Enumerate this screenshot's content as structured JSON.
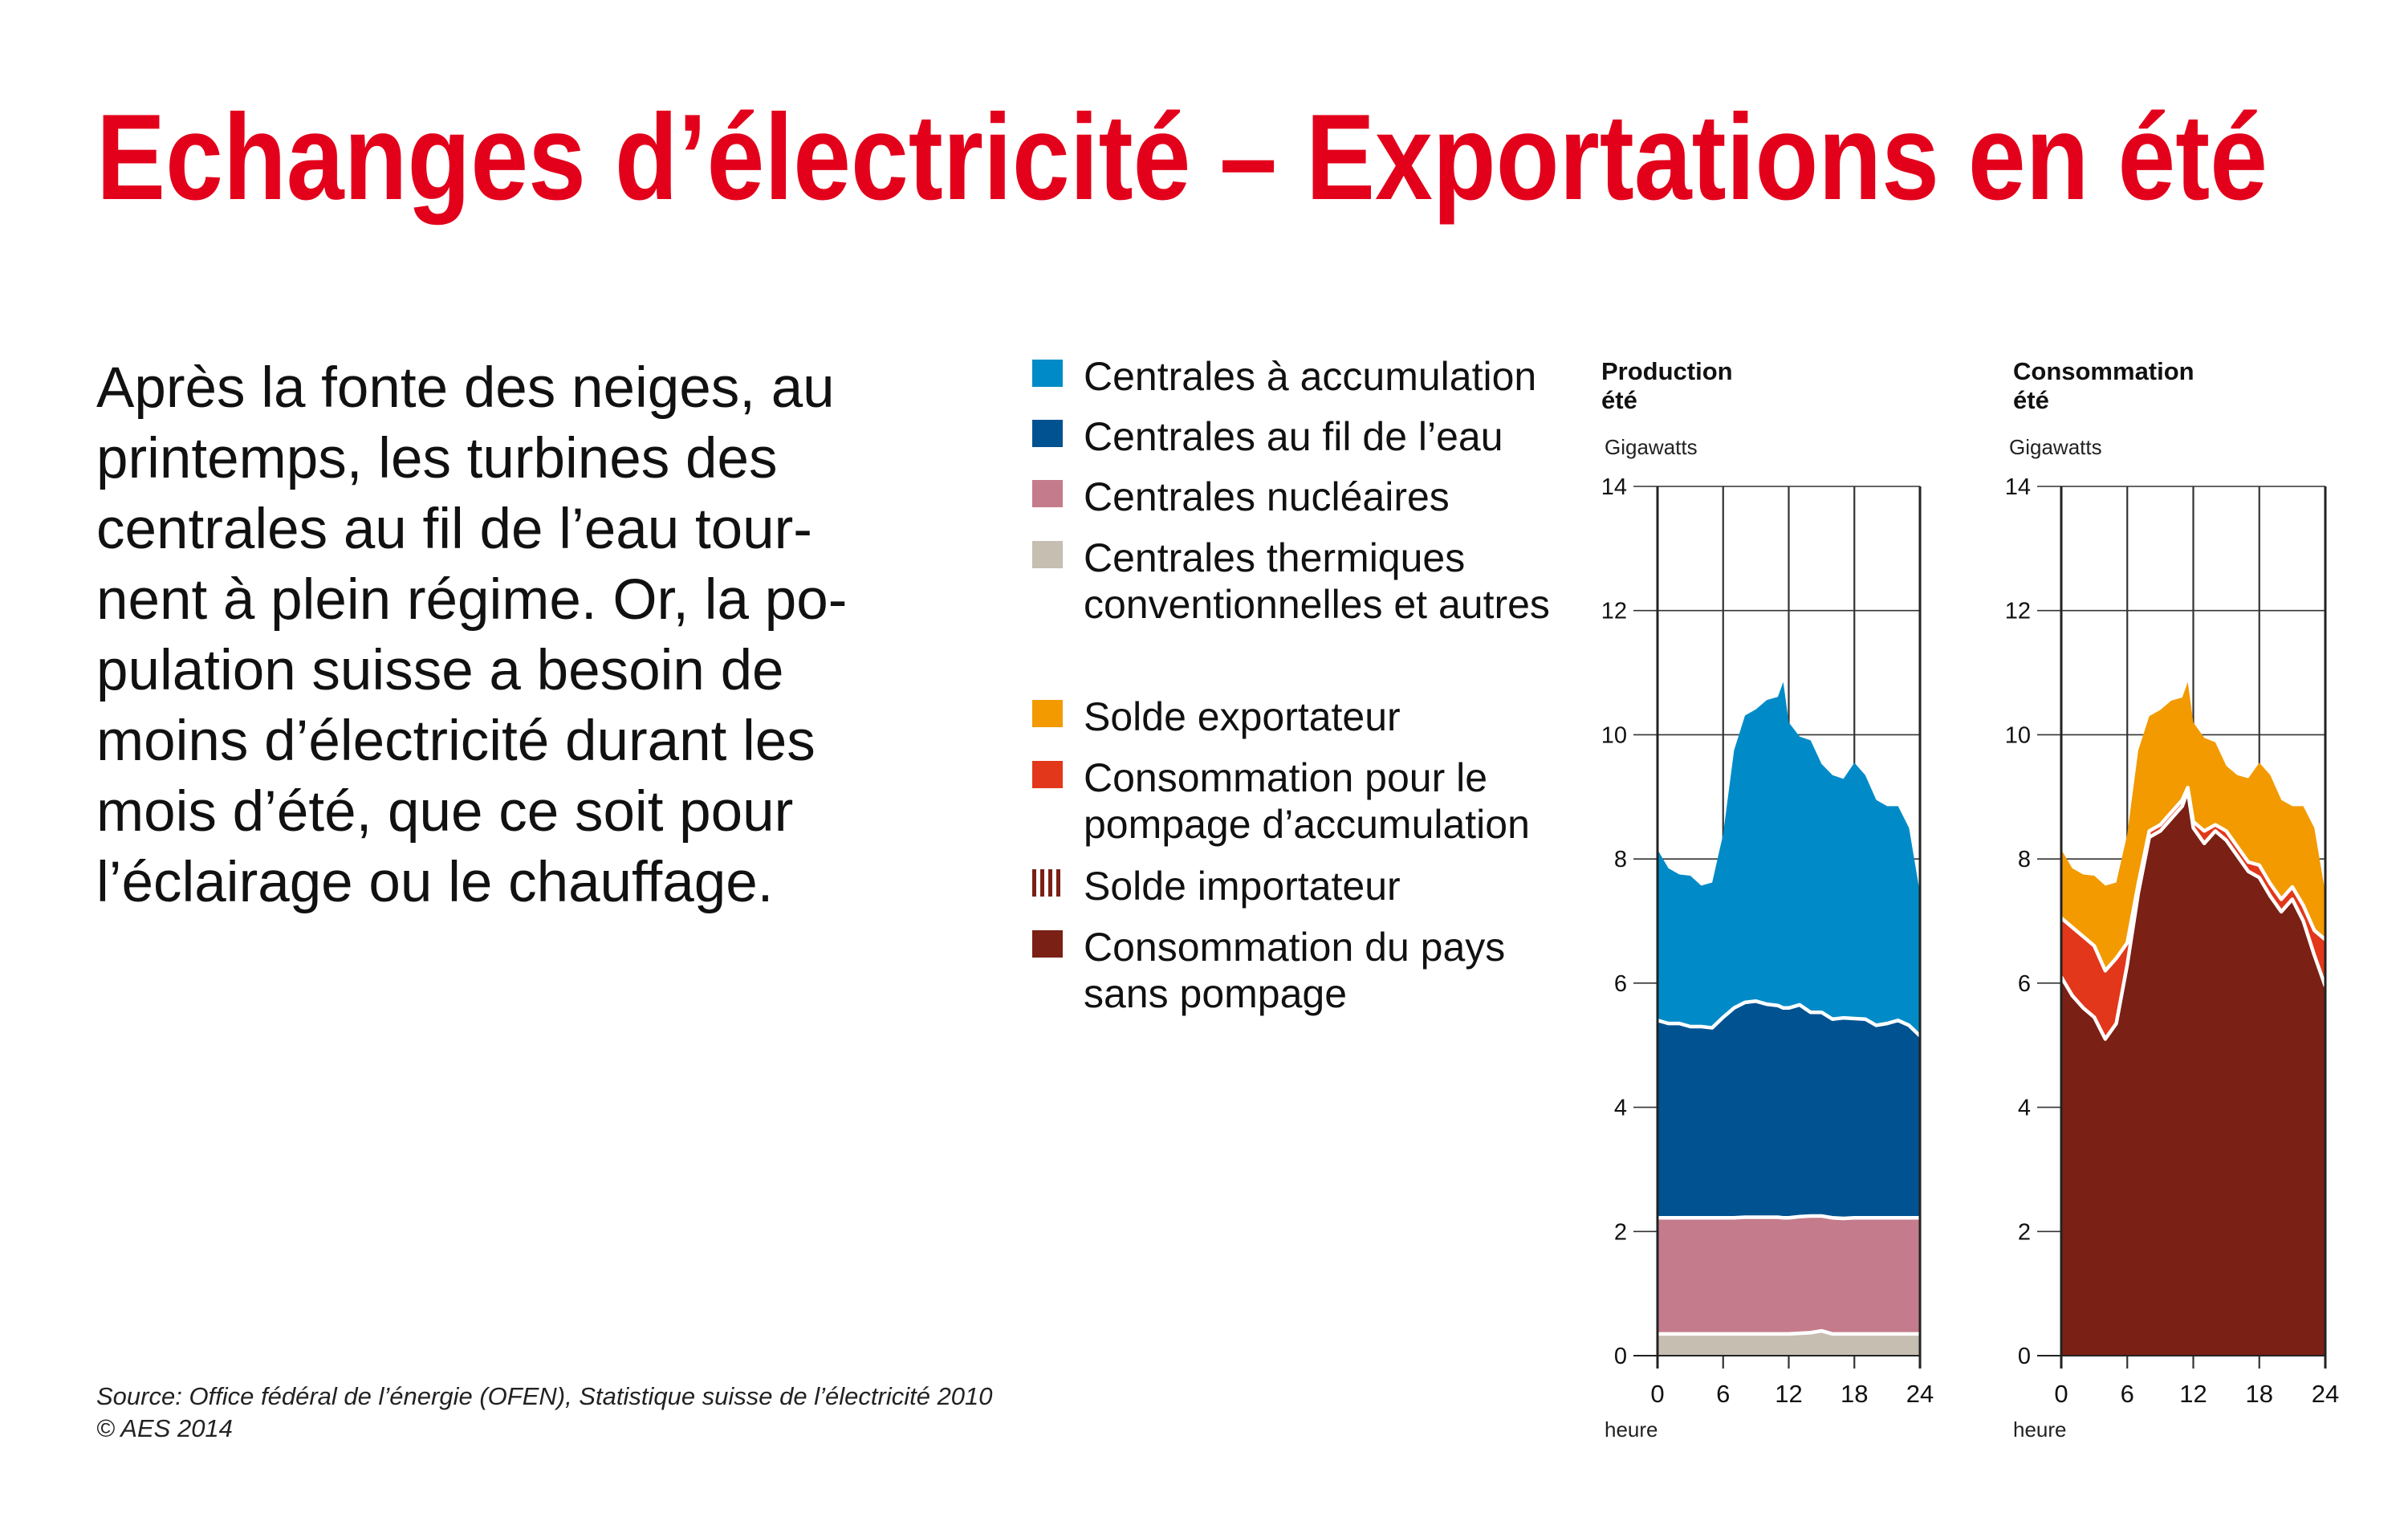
{
  "title": "Echanges d’électricité – Exportations en été",
  "body_lines": [
    "Après la fonte des neiges, au",
    "printemps, les turbines des",
    "centrales au fil de l’eau tour-",
    "nent à plein régime. Or, la po-",
    "pulation suisse a besoin de",
    "moins d’électricité durant les",
    "mois d’été, que ce soit pour",
    "l’éclairage ou le chauffage."
  ],
  "legend": [
    {
      "lines": [
        "Centrales à accumulation"
      ],
      "color": "#008BC8"
    },
    {
      "lines": [
        "Centrales au fil de l’eau"
      ],
      "color": "#005291"
    },
    {
      "lines": [
        "Centrales nucléaires"
      ],
      "color": "#C47B8B"
    },
    {
      "lines": [
        "Centrales thermiques",
        "conventionnelles et autres"
      ],
      "color": "#C6BEB1"
    },
    {
      "lines": [
        "Solde exportateur"
      ],
      "color": "#F29A00"
    },
    {
      "lines": [
        "Consommation pour le",
        "pompage d’accumulation"
      ],
      "color": "#E2371A"
    },
    {
      "lines": [
        "Solde importateur"
      ],
      "color": "#7A2014",
      "pattern": "vertical-stripes"
    },
    {
      "lines": [
        "Consommation du pays",
        "sans pompage"
      ],
      "color": "#7A2014"
    }
  ],
  "footer": {
    "source": "Source: Office fédéral de l’énergie (OFEN), Statistique suisse de l’électricité 2010",
    "copyright": "© AES 2014"
  },
  "colors": {
    "title": "#E3001B",
    "grid": "#333333"
  },
  "chart_data": [
    {
      "type": "area",
      "stacked": true,
      "title": [
        "Production",
        "été"
      ],
      "ylabel": "Gigawatts",
      "xlabel": "heure",
      "ylim": [
        0,
        14
      ],
      "yticks": [
        "0",
        "2",
        "4",
        "6",
        "8",
        "10",
        "12",
        "14"
      ],
      "xlim": [
        0,
        24
      ],
      "xticks": [
        "0",
        "6",
        "12",
        "18",
        "24"
      ],
      "grid": true,
      "x": [
        0,
        1,
        2,
        3,
        4,
        5,
        6,
        7,
        8,
        9,
        10,
        11,
        11.5,
        12,
        13,
        14,
        15,
        16,
        17,
        18,
        19,
        20,
        21,
        22,
        23,
        24
      ],
      "series": [
        {
          "name": "Centrales thermiques conventionnelles et autres",
          "color": "#C6BEB1",
          "values": [
            0.35,
            0.35,
            0.35,
            0.35,
            0.35,
            0.35,
            0.35,
            0.35,
            0.35,
            0.35,
            0.35,
            0.35,
            0.35,
            0.35,
            0.36,
            0.37,
            0.4,
            0.35,
            0.35,
            0.35,
            0.35,
            0.35,
            0.35,
            0.35,
            0.35,
            0.35
          ]
        },
        {
          "name": "Centrales nucléaires",
          "color": "#C47B8B",
          "values": [
            1.87,
            1.87,
            1.87,
            1.87,
            1.87,
            1.87,
            1.87,
            1.87,
            1.88,
            1.88,
            1.88,
            1.88,
            1.87,
            1.87,
            1.88,
            1.88,
            1.85,
            1.87,
            1.86,
            1.87,
            1.87,
            1.87,
            1.87,
            1.87,
            1.87,
            1.87
          ]
        },
        {
          "name": "Centrales au fil de l’eau",
          "color": "#005291",
          "values": [
            3.18,
            3.13,
            3.13,
            3.08,
            3.08,
            3.06,
            3.23,
            3.38,
            3.46,
            3.48,
            3.43,
            3.41,
            3.38,
            3.38,
            3.41,
            3.28,
            3.28,
            3.2,
            3.23,
            3.21,
            3.2,
            3.1,
            3.13,
            3.18,
            3.1,
            2.93
          ]
        },
        {
          "name": "Centrales à accumulation",
          "color": "#008BC8",
          "values": [
            2.75,
            2.5,
            2.4,
            2.43,
            2.27,
            2.34,
            2.95,
            4.15,
            4.62,
            4.7,
            4.9,
            4.97,
            5.25,
            4.6,
            4.32,
            4.38,
            4.0,
            3.93,
            3.85,
            4.12,
            3.93,
            3.63,
            3.5,
            3.45,
            3.18,
            2.3
          ]
        }
      ]
    },
    {
      "type": "area",
      "stacked": true,
      "title": [
        "Consommation",
        "été"
      ],
      "ylabel": "Gigawatts",
      "xlabel": "heure",
      "ylim": [
        0,
        14
      ],
      "yticks": [
        "0",
        "2",
        "4",
        "6",
        "8",
        "10",
        "12",
        "14"
      ],
      "xlim": [
        0,
        24
      ],
      "xticks": [
        "0",
        "6",
        "12",
        "18",
        "24"
      ],
      "grid": true,
      "x": [
        0,
        1,
        2,
        3,
        4,
        5,
        6,
        7,
        8,
        9,
        10,
        11,
        11.5,
        12,
        13,
        14,
        15,
        16,
        17,
        18,
        19,
        20,
        21,
        22,
        23,
        24
      ],
      "series": [
        {
          "name": "Consommation du pays sans pompage",
          "color": "#7A2014",
          "values": [
            6.1,
            5.8,
            5.6,
            5.45,
            5.1,
            5.35,
            6.3,
            7.45,
            8.35,
            8.45,
            8.65,
            8.85,
            9.1,
            8.5,
            8.25,
            8.45,
            8.3,
            8.05,
            7.8,
            7.7,
            7.4,
            7.15,
            7.35,
            7.0,
            6.45,
            5.95
          ]
        },
        {
          "name": "Solde importateur",
          "color": "#7A2014",
          "values": [
            0,
            0,
            0,
            0,
            0,
            0,
            0,
            0,
            0,
            0,
            0,
            0,
            0,
            0,
            0,
            0,
            0,
            0,
            0,
            0,
            0,
            0,
            0,
            0,
            0,
            0
          ]
        },
        {
          "name": "Consommation pour le pompage d’accumulation",
          "color": "#E2371A",
          "values": [
            0.95,
            1.1,
            1.15,
            1.15,
            1.1,
            1.05,
            0.35,
            0.15,
            0.1,
            0.1,
            0.1,
            0.1,
            0.05,
            0.1,
            0.2,
            0.1,
            0.15,
            0.15,
            0.15,
            0.2,
            0.2,
            0.2,
            0.2,
            0.25,
            0.4,
            0.75
          ]
        },
        {
          "name": "Solde exportateur",
          "color": "#F29A00",
          "values": [
            1.1,
            0.95,
            1.0,
            1.13,
            1.37,
            1.22,
            1.75,
            2.15,
            1.85,
            1.85,
            1.8,
            1.65,
            1.7,
            1.6,
            1.5,
            1.33,
            1.05,
            1.15,
            1.35,
            1.65,
            1.75,
            1.6,
            1.3,
            1.6,
            1.65,
            0.75
          ]
        }
      ]
    }
  ]
}
